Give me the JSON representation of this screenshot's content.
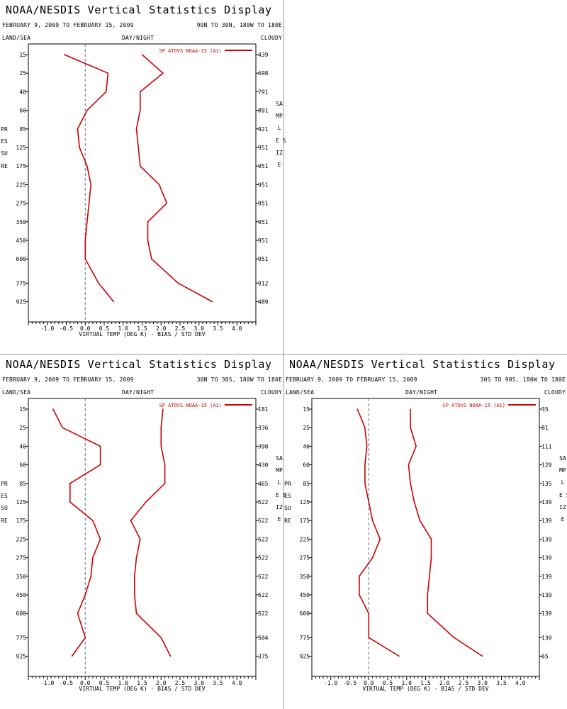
{
  "common": {
    "title": "NOAA/NESDIS Vertical Statistics Display",
    "date_range": "FEBRUARY 9, 2009 TO FEBRUARY 15, 2009",
    "land_sea": "LAND/SEA",
    "day_night": "DAY/NIGHT",
    "cloudy": "CLOUDY",
    "pressure_label": "PRESSURE",
    "sample_size_label": "SAMPLE SIZE",
    "xlabel": "VIRTUAL TEMP (DEG K) - BIAS / STD DEV",
    "legend": "SP ATOVS NOAA-15 (A1)",
    "line_color": "#cc0000"
  },
  "chart_data": [
    {
      "type": "line",
      "region": "90N TO 30N, 180W TO 180E",
      "xlim": [
        -1.5,
        4.5
      ],
      "x_ticks": [
        "-1.0",
        "-0.5",
        "0.0",
        "0.5",
        "1.0",
        "1.5",
        "2.0",
        "2.5",
        "3.0",
        "3.5",
        "4.0"
      ],
      "y_ticks": [
        "15",
        "25",
        "40",
        "60",
        "85",
        "125",
        "175",
        "225",
        "275",
        "350",
        "450",
        "600",
        "775",
        "925"
      ],
      "sample_size": [
        "439",
        "698",
        "791",
        "891",
        "921",
        "951",
        "951",
        "951",
        "951",
        "951",
        "951",
        "951",
        "912",
        "489"
      ],
      "series": [
        {
          "name": "BIAS",
          "values": [
            -0.55,
            0.6,
            0.55,
            0.05,
            -0.2,
            -0.15,
            0.05,
            0.15,
            0.1,
            0.05,
            0.0,
            0.0,
            0.35,
            0.75
          ]
        },
        {
          "name": "STD DEV",
          "values": [
            1.5,
            2.05,
            1.45,
            1.45,
            1.35,
            1.4,
            1.45,
            1.95,
            2.15,
            1.65,
            1.65,
            1.75,
            2.45,
            3.35
          ]
        }
      ]
    },
    {
      "type": "line",
      "region": "30N TO 30S, 180W TO 180E",
      "xlim": [
        -1.5,
        4.5
      ],
      "x_ticks": [
        "-1.0",
        "-0.5",
        "0.0",
        "0.5",
        "1.0",
        "1.5",
        "2.0",
        "2.5",
        "3.0",
        "3.5",
        "4.0"
      ],
      "y_ticks": [
        "15",
        "25",
        "40",
        "60",
        "85",
        "125",
        "175",
        "225",
        "275",
        "350",
        "450",
        "600",
        "775",
        "925"
      ],
      "sample_size": [
        "181",
        "336",
        "398",
        "430",
        "465",
        "522",
        "522",
        "522",
        "522",
        "522",
        "522",
        "522",
        "504",
        "375"
      ],
      "series": [
        {
          "name": "BIAS",
          "values": [
            -0.85,
            -0.6,
            0.4,
            0.4,
            -0.4,
            -0.4,
            0.2,
            0.4,
            0.2,
            0.15,
            0.0,
            -0.2,
            0.0,
            -0.35
          ]
        },
        {
          "name": "STD DEV",
          "values": [
            2.05,
            2.0,
            2.0,
            2.1,
            2.1,
            1.6,
            1.2,
            1.45,
            1.35,
            1.3,
            1.3,
            1.35,
            2.0,
            2.25
          ]
        }
      ]
    },
    {
      "type": "line",
      "region": "30S TO 90S, 180W TO 180E",
      "xlim": [
        -1.5,
        4.5
      ],
      "x_ticks": [
        "-1.0",
        "-0.5",
        "0.0",
        "0.5",
        "1.0",
        "1.5",
        "2.0",
        "2.5",
        "3.0",
        "3.5",
        "4.0"
      ],
      "y_ticks": [
        "15",
        "25",
        "40",
        "60",
        "85",
        "125",
        "175",
        "225",
        "275",
        "350",
        "450",
        "600",
        "775",
        "925"
      ],
      "sample_size": [
        "35",
        "81",
        "111",
        "129",
        "135",
        "139",
        "139",
        "139",
        "139",
        "139",
        "139",
        "139",
        "139",
        "65"
      ],
      "series": [
        {
          "name": "BIAS",
          "values": [
            -0.3,
            -0.1,
            -0.05,
            -0.1,
            -0.1,
            0.0,
            0.1,
            0.3,
            0.1,
            -0.25,
            -0.25,
            0.0,
            0.0,
            0.8
          ]
        },
        {
          "name": "STD DEV",
          "values": [
            1.1,
            1.1,
            1.25,
            1.05,
            1.1,
            1.2,
            1.35,
            1.65,
            1.65,
            1.6,
            1.55,
            1.55,
            2.25,
            3.0
          ]
        }
      ]
    }
  ]
}
